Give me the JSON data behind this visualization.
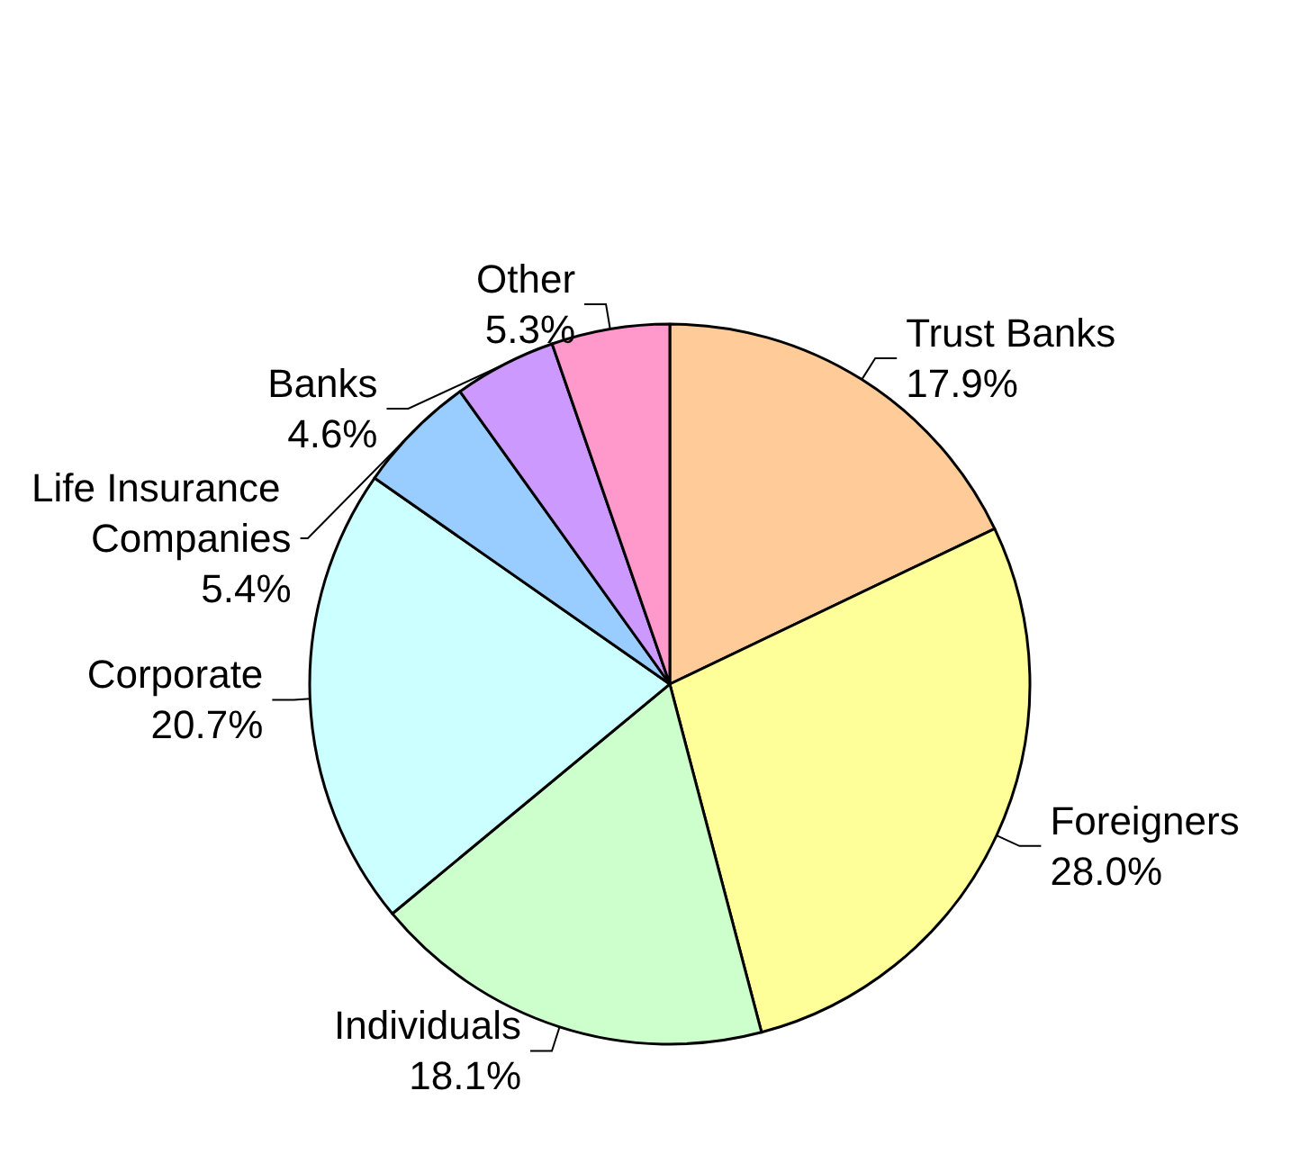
{
  "chart_data": {
    "type": "pie",
    "categories": [
      "Trust Banks",
      "Foreigners",
      "Individuals",
      "Corporate",
      "Life Insurance Companies",
      "Banks",
      "Other"
    ],
    "values": [
      17.9,
      28.0,
      18.1,
      20.7,
      5.4,
      4.6,
      5.3
    ],
    "value_labels": [
      "17.9%",
      "28.0%",
      "18.1%",
      "20.7%",
      "5.4%",
      "4.6%",
      "5.3%"
    ],
    "colors": [
      "#ffcc99",
      "#ffff99",
      "#ccffcc",
      "#ccffff",
      "#99ccff",
      "#cc99ff",
      "#ff99cc"
    ],
    "legend": false
  }
}
